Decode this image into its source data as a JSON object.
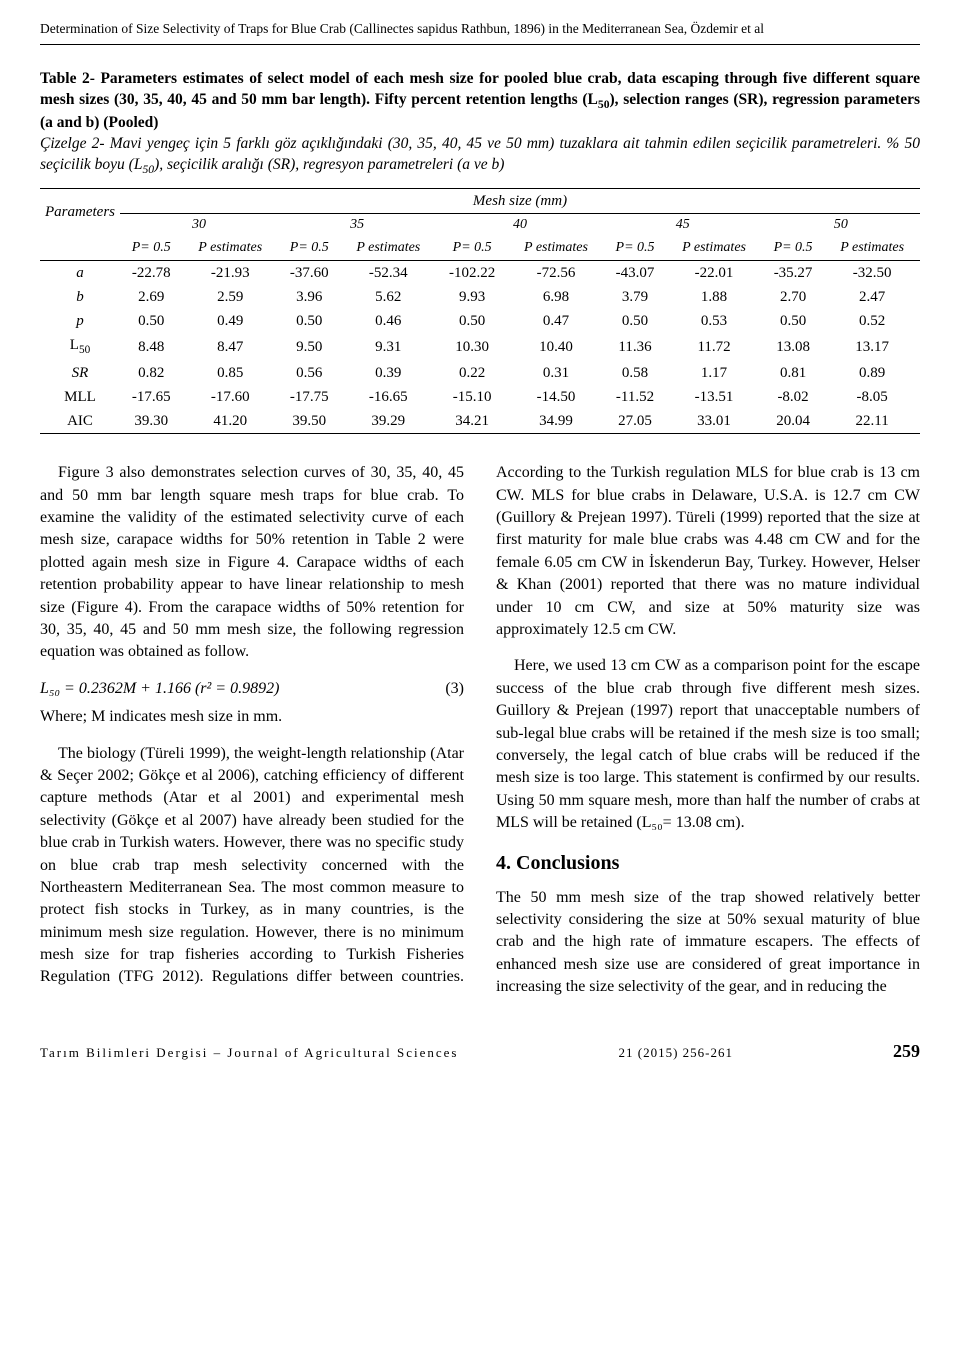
{
  "header": {
    "running_title": "Determination of Size Selectivity of Traps for Blue Crab (Callinectes sapidus Rathbun, 1896) in the Mediterranean Sea, Özdemir et al"
  },
  "table": {
    "caption_bold": "Table 2- Parameters estimates of select model of each mesh size for pooled blue crab, data escaping through five different square mesh sizes (30, 35, 40, 45 and 50 mm bar length). Fifty percent retention lengths (L",
    "caption_bold_cont": "), selection ranges (SR), regression parameters (a and b) (Pooled)",
    "caption_italic": "Çizelge 2- Mavi yengeç için 5 farklı göz açıklığındaki (30, 35, 40, 45 ve 50 mm) tuzaklara ait tahmin edilen seçicilik parametreleri. % 50 seçicilik boyu (L",
    "caption_italic_cont": "), seçicilik aralığı (SR), regresyon parametreleri (a ve b)",
    "mesh_header": "Mesh size (mm)",
    "param_label": "Parameters",
    "mesh_sizes": [
      "30",
      "35",
      "40",
      "45",
      "50"
    ],
    "sub_headers": [
      "P= 0.5",
      "P estimates",
      "P= 0.5",
      "P estimates",
      "P= 0.5",
      "P estimates",
      "P= 0.5",
      "P estimates",
      "P= 0.5",
      "P estimates"
    ],
    "rows": [
      {
        "param": "a",
        "vals": [
          "-22.78",
          "-21.93",
          "-37.60",
          "-52.34",
          "-102.22",
          "-72.56",
          "-43.07",
          "-22.01",
          "-35.27",
          "-32.50"
        ]
      },
      {
        "param": "b",
        "vals": [
          "2.69",
          "2.59",
          "3.96",
          "5.62",
          "9.93",
          "6.98",
          "3.79",
          "1.88",
          "2.70",
          "2.47"
        ]
      },
      {
        "param": "p",
        "vals": [
          "0.50",
          "0.49",
          "0.50",
          "0.46",
          "0.50",
          "0.47",
          "0.50",
          "0.53",
          "0.50",
          "0.52"
        ]
      },
      {
        "param": "L₅₀",
        "vals": [
          "8.48",
          "8.47",
          "9.50",
          "9.31",
          "10.30",
          "10.40",
          "11.36",
          "11.72",
          "13.08",
          "13.17"
        ]
      },
      {
        "param": "SR",
        "vals": [
          "0.82",
          "0.85",
          "0.56",
          "0.39",
          "0.22",
          "0.31",
          "0.58",
          "1.17",
          "0.81",
          "0.89"
        ]
      },
      {
        "param": "MLL",
        "vals": [
          "-17.65",
          "-17.60",
          "-17.75",
          "-16.65",
          "-15.10",
          "-14.50",
          "-11.52",
          "-13.51",
          "-8.02",
          "-8.05"
        ]
      },
      {
        "param": "AIC",
        "vals": [
          "39.30",
          "41.20",
          "39.50",
          "39.29",
          "34.21",
          "34.99",
          "27.05",
          "33.01",
          "20.04",
          "22.11"
        ]
      }
    ]
  },
  "body": {
    "p1": "Figure 3 also demonstrates selection curves of 30, 35, 40, 45 and 50 mm bar length square mesh traps for blue crab. To examine the validity of the estimated selectivity curve of each mesh size, carapace widths for 50% retention in Table 2 were plotted again mesh size in Figure 4. Carapace widths of each retention probability appear to have linear relationship to mesh size (Figure 4). From the carapace widths of 50% retention for 30, 35, 40, 45 and 50 mm mesh size, the following regression equation was obtained as follow.",
    "eq": "L₅₀ = 0.2362M + 1.166   (r² = 0.9892)",
    "eq_num": "(3)",
    "p_where": "Where; M indicates mesh size in mm.",
    "p2": "The biology (Türeli 1999), the weight-length relationship (Atar & Seçer 2002; Gökçe et al 2006), catching efficiency of different capture methods (Atar et al 2001) and experimental mesh selectivity (Gökçe et al 2007) have already been studied for the blue crab in Turkish waters. However, there was no specific study on blue crab trap mesh selectivity concerned with the Northeastern Mediterranean Sea. The most common measure to protect fish stocks in Turkey, as in many countries, is the minimum mesh size regulation. However, there is no minimum mesh size for trap fisheries according to Turkish Fisheries Regulation (TFG 2012). Regulations differ between countries. According to the Turkish regulation MLS for blue crab is 13 cm CW. MLS for blue crabs in Delaware, U.S.A. is 12.7 cm CW (Guillory & Prejean 1997). Türeli (1999) reported that the size at first maturity for male blue crabs was 4.48 cm CW and for the female 6.05 cm CW in İskenderun Bay, Turkey. However, Helser & Khan (2001) reported that there was no mature individual under 10 cm CW, and size at 50% maturity size was approximately 12.5 cm CW.",
    "p3": "Here, we used 13 cm CW as a comparison point for the escape success of the blue crab through five different mesh sizes. Guillory & Prejean (1997) report that unacceptable numbers of sub-legal blue crabs will be retained if the mesh size is too small; conversely, the legal catch of blue crabs will be reduced if the mesh size is too large. This statement is confirmed by our results. Using 50 mm square mesh, more than half the number of crabs at MLS will be retained (L₅₀= 13.08 cm).",
    "h_conclusions": "4. Conclusions",
    "p4": "The 50 mm mesh size of the trap showed relatively better selectivity considering the size at 50% sexual maturity of blue crab and the high rate of immature escapers. The effects of enhanced mesh size use are considered of great importance in increasing the size selectivity of the gear, and in reducing the"
  },
  "footer": {
    "journal": "Tarım Bilimleri Dergisi – Journal of Agricultural Sciences",
    "issue": "21 (2015) 256-261",
    "page": "259"
  }
}
